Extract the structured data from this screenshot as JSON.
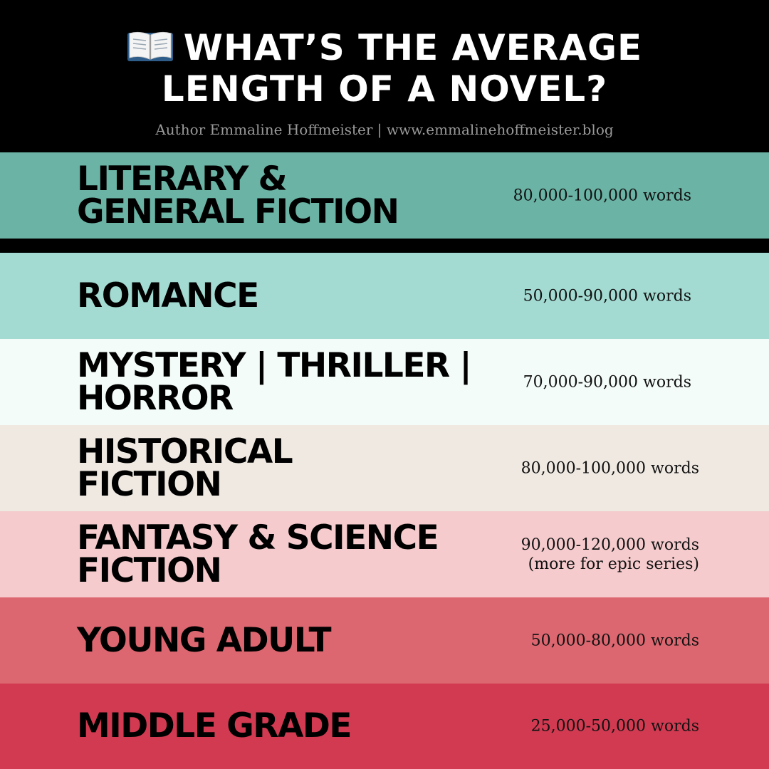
{
  "header": {
    "icon": "open-book-icon",
    "title_lines": [
      "WHAT’S THE AVERAGE",
      "LENGTH OF A NOVEL?"
    ],
    "subtitle": "Author Emmaline Hoffmeister | www.emmalinehoffmeister.blog"
  },
  "rows": [
    {
      "genre_lines": [
        "LITERARY &",
        "GENERAL FICTION"
      ],
      "words_lines": [
        "80,000-100,000 words"
      ],
      "color": "#6ab3a5"
    },
    {
      "genre_lines": [
        "ROMANCE"
      ],
      "words_lines": [
        "50,000-90,000 words"
      ],
      "color": "#a3dbd2"
    },
    {
      "genre_lines": [
        "MYSTERY | THRILLER |",
        "HORROR"
      ],
      "words_lines": [
        "70,000-90,000 words"
      ],
      "color": "#f3fcf8"
    },
    {
      "genre_lines": [
        "HISTORICAL",
        "FICTION"
      ],
      "words_lines": [
        "80,000-100,000 words"
      ],
      "color": "#efe9e2"
    },
    {
      "genre_lines": [
        "FANTASY & SCIENCE",
        "FICTION"
      ],
      "words_lines": [
        "90,000-120,000 words",
        "(more for epic series)"
      ],
      "color": "#f5cbcd"
    },
    {
      "genre_lines": [
        "YOUNG ADULT"
      ],
      "words_lines": [
        "50,000-80,000 words"
      ],
      "color": "#dc6770"
    },
    {
      "genre_lines": [
        "MIDDLE GRADE"
      ],
      "words_lines": [
        "25,000-50,000 words"
      ],
      "color": "#d13a51"
    }
  ]
}
